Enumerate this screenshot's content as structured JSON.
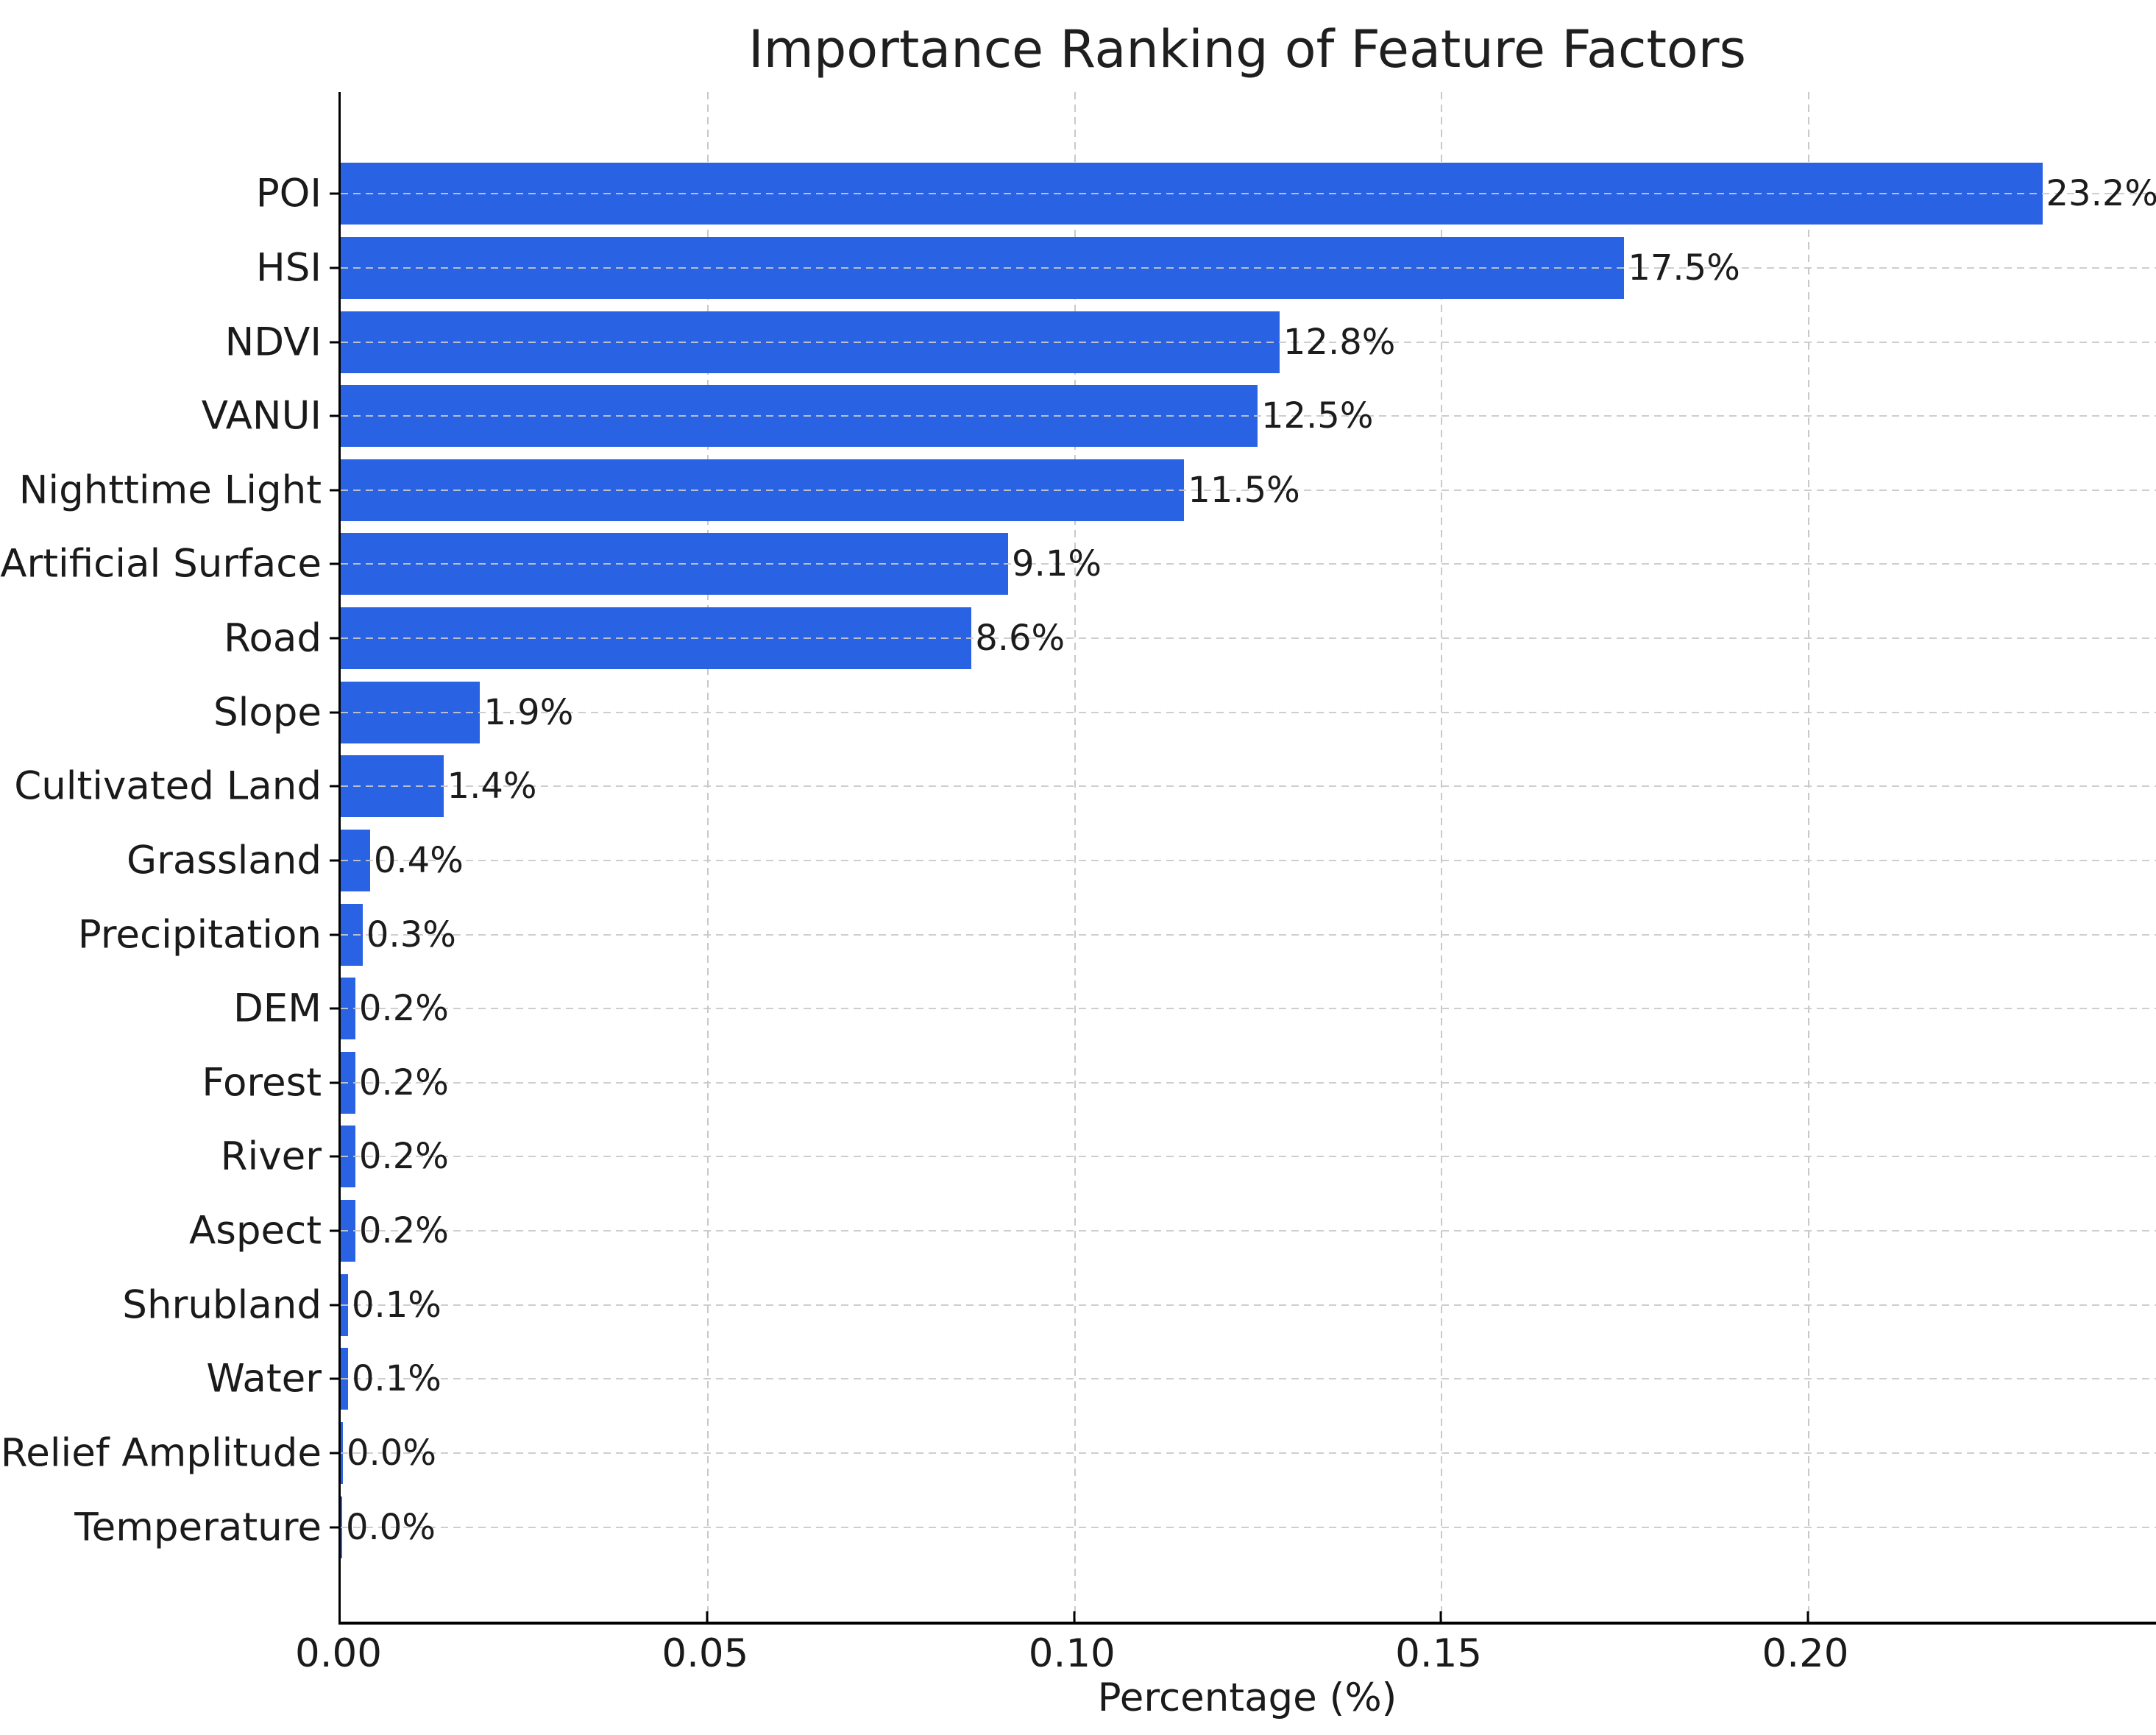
{
  "title": "Importance Ranking of Feature Factors",
  "x_axis": {
    "label": "Percentage (%)",
    "tick_labels": [
      "0.00",
      "0.05",
      "0.10",
      "0.15",
      "0.20"
    ],
    "tick_values": [
      0.0,
      0.05,
      0.1,
      0.15,
      0.2
    ],
    "max": 0.2475
  },
  "colors": {
    "bar": "#2a62e4",
    "grid": "#c9c9c9",
    "text": "#1a1a1a",
    "spine": "#000000",
    "background": "#ffffff"
  },
  "chart_data": {
    "type": "bar",
    "orientation": "horizontal",
    "title": "Importance Ranking of Feature Factors",
    "xlabel": "Percentage (%)",
    "ylabel": "",
    "categories": [
      "POI",
      "HSI",
      "NDVI",
      "VANUI",
      "Nighttime Light",
      "Artificial Surface",
      "Road",
      "Slope",
      "Cultivated Land",
      "Grassland",
      "Precipitation",
      "DEM",
      "Forest",
      "River",
      "Aspect",
      "Shrubland",
      "Water",
      "Relief Amplitude",
      "Temperature"
    ],
    "values": [
      0.232,
      0.175,
      0.128,
      0.125,
      0.115,
      0.091,
      0.086,
      0.019,
      0.014,
      0.004,
      0.003,
      0.002,
      0.002,
      0.002,
      0.002,
      0.001,
      0.001,
      0.0003,
      0.0002
    ],
    "value_labels": [
      "23.2%",
      "17.5%",
      "12.8%",
      "12.5%",
      "11.5%",
      "9.1%",
      "8.6%",
      "1.9%",
      "1.4%",
      "0.4%",
      "0.3%",
      "0.2%",
      "0.2%",
      "0.2%",
      "0.2%",
      "0.1%",
      "0.1%",
      "0.0%",
      "0.0%"
    ],
    "xlim": [
      0,
      0.2475
    ],
    "xticks": [
      0.0,
      0.05,
      0.1,
      0.15,
      0.2
    ],
    "grid": "dashed, both axes, drawn over bars horizontally",
    "legend": "none"
  }
}
